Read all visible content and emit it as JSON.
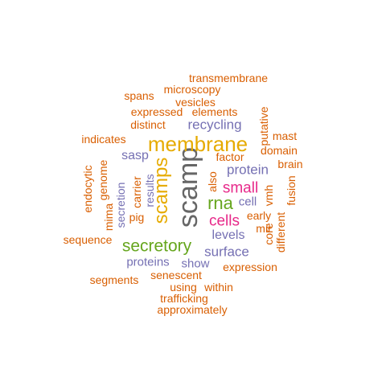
{
  "colors": {
    "orange": "#d95f02",
    "purple": "#7570b3",
    "magenta": "#e7298a",
    "green": "#66a61e",
    "gold": "#e6ab02",
    "gray": "#666666"
  },
  "words": [
    {
      "text": "scamp",
      "color": "gray",
      "vertical": true
    },
    {
      "text": "membrane",
      "color": "gold",
      "vertical": false
    },
    {
      "text": "scamps",
      "color": "gold",
      "vertical": true
    },
    {
      "text": "secretory",
      "color": "green",
      "vertical": false
    },
    {
      "text": "rna",
      "color": "green",
      "vertical": false
    },
    {
      "text": "cells",
      "color": "magenta",
      "vertical": false
    },
    {
      "text": "small",
      "color": "magenta",
      "vertical": false
    },
    {
      "text": "recycling",
      "color": "purple",
      "vertical": false
    },
    {
      "text": "protein",
      "color": "purple",
      "vertical": false
    },
    {
      "text": "surface",
      "color": "purple",
      "vertical": false
    },
    {
      "text": "levels",
      "color": "purple",
      "vertical": false
    },
    {
      "text": "proteins",
      "color": "purple",
      "vertical": false
    },
    {
      "text": "show",
      "color": "purple",
      "vertical": false
    },
    {
      "text": "sasp",
      "color": "purple",
      "vertical": false
    },
    {
      "text": "cell",
      "color": "purple",
      "vertical": false
    },
    {
      "text": "results",
      "color": "purple",
      "vertical": true
    },
    {
      "text": "secretion",
      "color": "purple",
      "vertical": true
    },
    {
      "text": "transmembrane",
      "color": "orange",
      "vertical": false
    },
    {
      "text": "microscopy",
      "color": "orange",
      "vertical": false
    },
    {
      "text": "spans",
      "color": "orange",
      "vertical": false
    },
    {
      "text": "vesicles",
      "color": "orange",
      "vertical": false
    },
    {
      "text": "expressed",
      "color": "orange",
      "vertical": false
    },
    {
      "text": "elements",
      "color": "orange",
      "vertical": false
    },
    {
      "text": "distinct",
      "color": "orange",
      "vertical": false
    },
    {
      "text": "indicates",
      "color": "orange",
      "vertical": false
    },
    {
      "text": "putative",
      "color": "orange",
      "vertical": true
    },
    {
      "text": "mast",
      "color": "orange",
      "vertical": false
    },
    {
      "text": "domain",
      "color": "orange",
      "vertical": false
    },
    {
      "text": "factor",
      "color": "orange",
      "vertical": false
    },
    {
      "text": "brain",
      "color": "orange",
      "vertical": false
    },
    {
      "text": "endocytic",
      "color": "orange",
      "vertical": true
    },
    {
      "text": "genome",
      "color": "orange",
      "vertical": true
    },
    {
      "text": "carrier",
      "color": "orange",
      "vertical": true
    },
    {
      "text": "also",
      "color": "orange",
      "vertical": true
    },
    {
      "text": "vmh",
      "color": "orange",
      "vertical": true
    },
    {
      "text": "fusion",
      "color": "orange",
      "vertical": true
    },
    {
      "text": "mima",
      "color": "orange",
      "vertical": true
    },
    {
      "text": "pig",
      "color": "orange",
      "vertical": false
    },
    {
      "text": "early",
      "color": "orange",
      "vertical": false
    },
    {
      "text": "mir",
      "color": "orange",
      "vertical": false
    },
    {
      "text": "core",
      "color": "orange",
      "vertical": true
    },
    {
      "text": "different",
      "color": "orange",
      "vertical": true
    },
    {
      "text": "sequence",
      "color": "orange",
      "vertical": false
    },
    {
      "text": "expression",
      "color": "orange",
      "vertical": false
    },
    {
      "text": "segments",
      "color": "orange",
      "vertical": false
    },
    {
      "text": "senescent",
      "color": "orange",
      "vertical": false
    },
    {
      "text": "using",
      "color": "orange",
      "vertical": false
    },
    {
      "text": "within",
      "color": "orange",
      "vertical": false
    },
    {
      "text": "trafficking",
      "color": "orange",
      "vertical": false
    },
    {
      "text": "approximately",
      "color": "orange",
      "vertical": false
    }
  ]
}
